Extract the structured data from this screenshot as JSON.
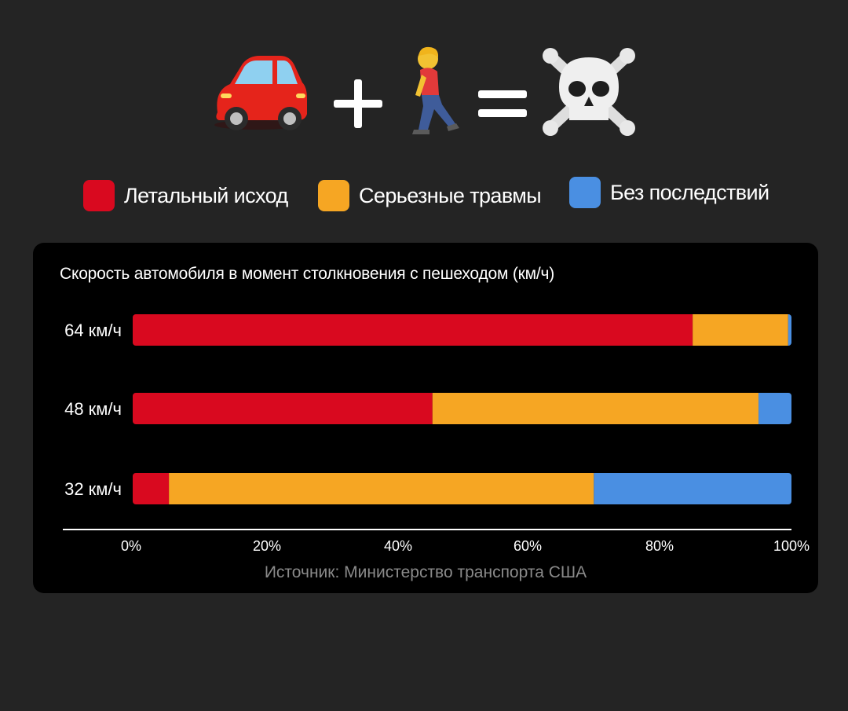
{
  "legend": [
    {
      "label": "Летальный исход",
      "color": "#d9091f"
    },
    {
      "label": "Серьезные травмы",
      "color": "#f6a623"
    },
    {
      "label": "Без последствий",
      "color": "#4a8fe2"
    }
  ],
  "chart_data": {
    "type": "bar",
    "orientation": "horizontal",
    "stacked": true,
    "title": "Скорость автомобиля в момент столкновения с пешеходом (км/ч)",
    "source": "Источник: Министерство транспорта США",
    "categories": [
      "64 км/ч",
      "48 км/ч",
      "32 км/ч"
    ],
    "series": [
      {
        "name": "Летальный исход",
        "color": "#d9091f",
        "values": [
          85,
          45.5,
          5.5
        ]
      },
      {
        "name": "Серьезные травмы",
        "color": "#f6a623",
        "values": [
          14.5,
          49.5,
          64.5
        ]
      },
      {
        "name": "Без последствий",
        "color": "#4a8fe2",
        "values": [
          0.5,
          5,
          30
        ]
      }
    ],
    "x_ticks": [
      "0%",
      "20%",
      "40%",
      "60%",
      "80%",
      "100%"
    ],
    "xlim": [
      0,
      100
    ],
    "grid": false,
    "legend_position": "top"
  }
}
